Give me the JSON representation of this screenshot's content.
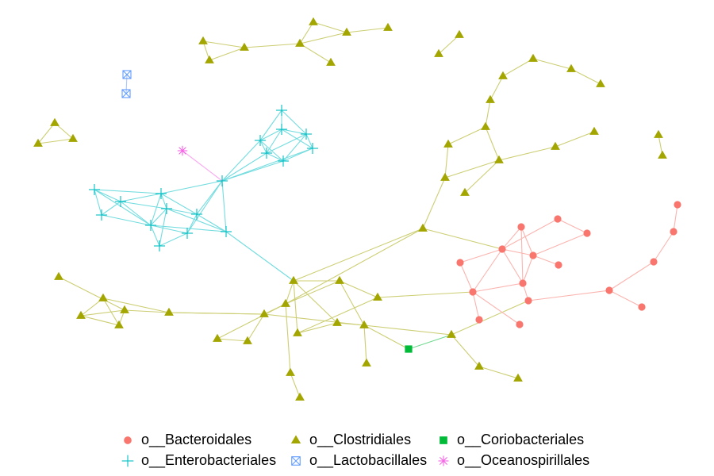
{
  "colors": {
    "Bacteroidales": "#F8766D",
    "Clostridiales": "#A3A500",
    "Coriobacteriales": "#00BA38",
    "Enterobacteriales": "#00BFC4",
    "Lactobacillales": "#619CFF",
    "Oceanospirillales": "#F564E3"
  },
  "legend": {
    "items": [
      {
        "label": "o__Bacteroidales",
        "shape": "circle",
        "color": "#F8766D"
      },
      {
        "label": "o__Clostridiales",
        "shape": "triangle",
        "color": "#A3A500"
      },
      {
        "label": "o__Coriobacteriales",
        "shape": "square",
        "color": "#00BA38"
      },
      {
        "label": "o__Enterobacteriales",
        "shape": "plus",
        "color": "#00BFC4"
      },
      {
        "label": "o__Lactobacillales",
        "shape": "boxx",
        "color": "#619CFF"
      },
      {
        "label": "o__Oceanospirillales",
        "shape": "asterisk",
        "color": "#F564E3"
      }
    ]
  }
}
